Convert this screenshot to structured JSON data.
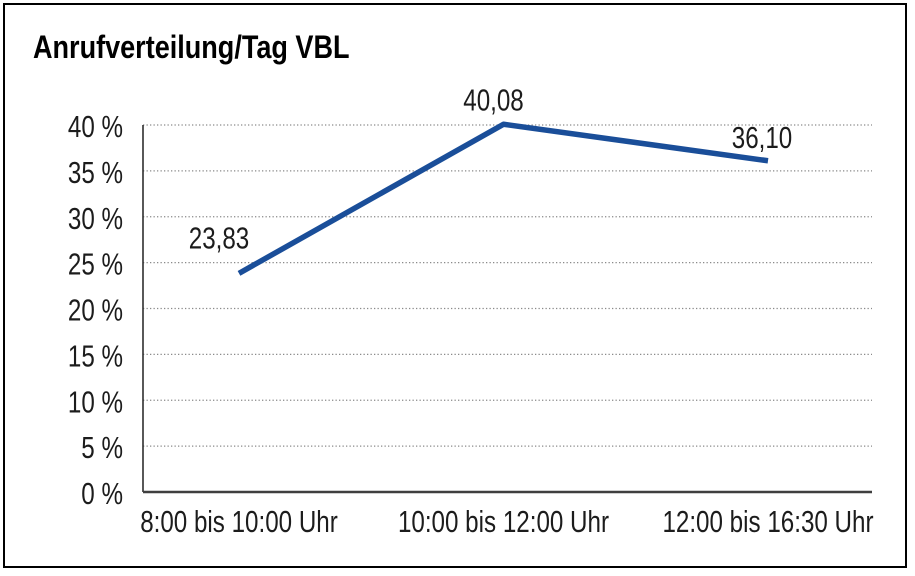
{
  "chart_data": {
    "type": "line",
    "title": "Anrufverteilung/Tag VBL",
    "categories": [
      "8:00 bis 10:00 Uhr",
      "10:00 bis 12:00 Uhr",
      "12:00 bis 16:30 Uhr"
    ],
    "values": [
      23.83,
      40.08,
      36.1
    ],
    "point_labels": [
      "23,83",
      "40,08",
      "36,10"
    ],
    "y_tick_labels": [
      "0 %",
      "5 %",
      "10 %",
      "15 %",
      "20 %",
      "25 %",
      "30 %",
      "35 %",
      "40 %"
    ],
    "ylim": [
      0,
      40
    ],
    "y_tick_step": 5,
    "xlabel": "",
    "ylabel": "",
    "legend_position": "none",
    "grid": "horizontal-dotted",
    "colors": {
      "line": "#1a4e99",
      "text": "#1c1c1c",
      "grid": "#8a8a8a",
      "axis": "#3f3f3f",
      "frame": "#000000",
      "background": "#ffffff"
    }
  }
}
